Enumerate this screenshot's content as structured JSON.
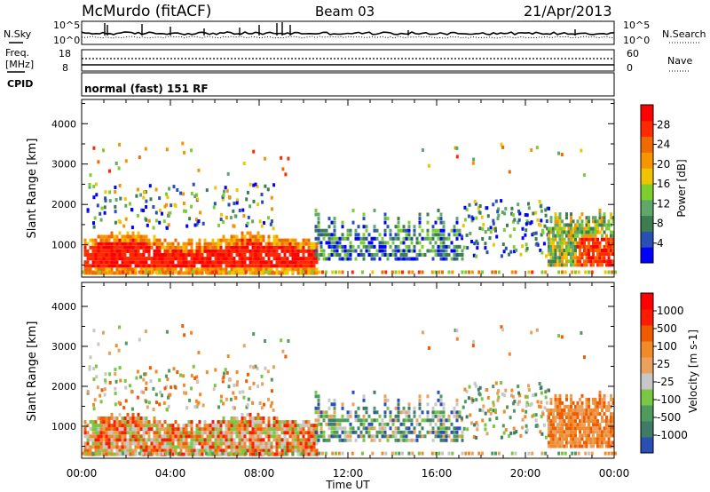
{
  "header": {
    "station": "McMurdo (fitACF)",
    "beam": "Beam 03",
    "date": "21/Apr/2013"
  },
  "top_panels": {
    "nsky_label": "N.Sky",
    "nsearch_label": "N.Search",
    "noise_ticks": [
      "10^5",
      "10^0"
    ],
    "freq_label_1": "Freq.",
    "freq_label_2": "[MHz]",
    "freq_ticks": [
      "18",
      "8"
    ],
    "nave_label": "Nave",
    "nave_ticks": [
      "60",
      "0"
    ],
    "cpid_label": "CPID",
    "cpid_text": "normal (fast) 151 RF"
  },
  "colors": {
    "power": [
      "#0000ff",
      "#2a4fb5",
      "#3d7d4f",
      "#5fa86a",
      "#7ccf2f",
      "#f0c400",
      "#f79500",
      "#ef6a00",
      "#ff2a00",
      "#ff0000"
    ],
    "velocity": [
      "#2a4fb5",
      "#3f7c67",
      "#4f9a5d",
      "#79c743",
      "#c7c7c7",
      "#e9a15d",
      "#f08a2a",
      "#f05a00",
      "#ff1a00",
      "#ff0000"
    ]
  },
  "chart_data": [
    {
      "type": "heatmap",
      "ylabel": "Slant Range [km]",
      "xlabel": "Time UT",
      "x_ticks": [
        "00:00",
        "04:00",
        "08:00",
        "12:00",
        "16:00",
        "20:00",
        "00:00"
      ],
      "y_ticks": [
        "1000",
        "2000",
        "3000",
        "4000"
      ],
      "ylim": [
        200,
        4600
      ],
      "colorbar_label": "Power [dB]",
      "colorbar_ticks": [
        "4",
        "8",
        "12",
        "16",
        "20",
        "24",
        "28"
      ]
    },
    {
      "type": "heatmap",
      "ylabel": "Slant Range [km]",
      "xlabel": "Time UT",
      "x_ticks": [
        "00:00",
        "04:00",
        "08:00",
        "12:00",
        "16:00",
        "20:00",
        "00:00"
      ],
      "y_ticks": [
        "1000",
        "2000",
        "3000",
        "4000"
      ],
      "ylim": [
        200,
        4600
      ],
      "colorbar_label": "Velocity [m s-1]",
      "colorbar_ticks": [
        "1000",
        "500",
        "100",
        "25",
        "-25",
        "-100",
        "-500",
        "-1000"
      ]
    }
  ]
}
